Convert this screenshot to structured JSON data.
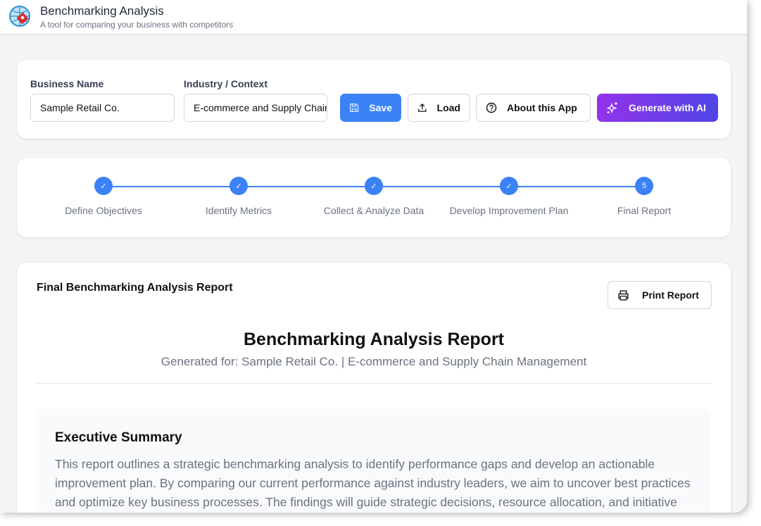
{
  "header": {
    "title": "Benchmarking Analysis",
    "subtitle": "A tool for comparing your business with competitors"
  },
  "form": {
    "business_label": "Business Name",
    "business_value": "Sample Retail Co.",
    "industry_label": "Industry / Context",
    "industry_value": "E-commerce and Supply Chain Management"
  },
  "toolbar": {
    "save": "Save",
    "load": "Load",
    "about": "About this App",
    "generate": "Generate with AI"
  },
  "steps": [
    {
      "label": "Define Objectives",
      "state": "done"
    },
    {
      "label": "Identify Metrics",
      "state": "done"
    },
    {
      "label": "Collect & Analyze Data",
      "state": "done"
    },
    {
      "label": "Develop Improvement Plan",
      "state": "done"
    },
    {
      "label": "Final Report",
      "number": "5",
      "state": "current"
    }
  ],
  "report": {
    "card_title": "Final Benchmarking Analysis Report",
    "print": "Print Report",
    "title": "Benchmarking Analysis Report",
    "generated": "Generated for: Sample Retail Co. | E-commerce and Supply Chain Management",
    "exec_title": "Executive Summary",
    "exec_text": "This report outlines a strategic benchmarking analysis to identify performance gaps and develop an actionable improvement plan. By comparing our current performance against industry leaders, we aim to uncover best practices and optimize key business processes. The findings will guide strategic decisions, resource allocation, and initiative"
  },
  "colors": {
    "primary": "#3b82f6",
    "ai_start": "#9333ea",
    "ai_end": "#4f46e5"
  }
}
